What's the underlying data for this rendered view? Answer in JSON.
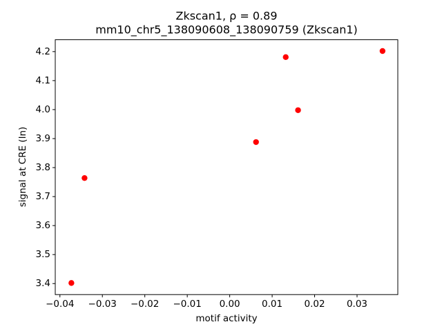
{
  "chart_data": {
    "type": "scatter",
    "title": "Zkscan1, ρ = 0.89",
    "subtitle": "mm10_chr5_138090608_138090759 (Zkscan1)",
    "x_label": "motif activity",
    "y_label": "signal at CRE (ln)",
    "color": "#ff0000",
    "x": [
      -0.0373,
      -0.0342,
      0.0062,
      0.0132,
      0.0161,
      0.036
    ],
    "y": [
      3.402,
      3.764,
      3.888,
      4.181,
      3.998,
      4.202
    ],
    "xlim": [
      -0.0411,
      0.0396
    ],
    "ylim": [
      3.362,
      4.241
    ],
    "xticks": [
      {
        "value": -0.04,
        "label": "−0.04"
      },
      {
        "value": -0.03,
        "label": "−0.03"
      },
      {
        "value": -0.02,
        "label": "−0.02"
      },
      {
        "value": -0.01,
        "label": "−0.01"
      },
      {
        "value": 0,
        "label": "0.00"
      },
      0.01,
      0.02,
      0.03
    ],
    "yticks": [
      3.4,
      3.5,
      3.6,
      3.7,
      3.8,
      3.9,
      {
        "value": 4,
        "label": "4.0"
      },
      4.1,
      4.2
    ],
    "grid": false
  }
}
